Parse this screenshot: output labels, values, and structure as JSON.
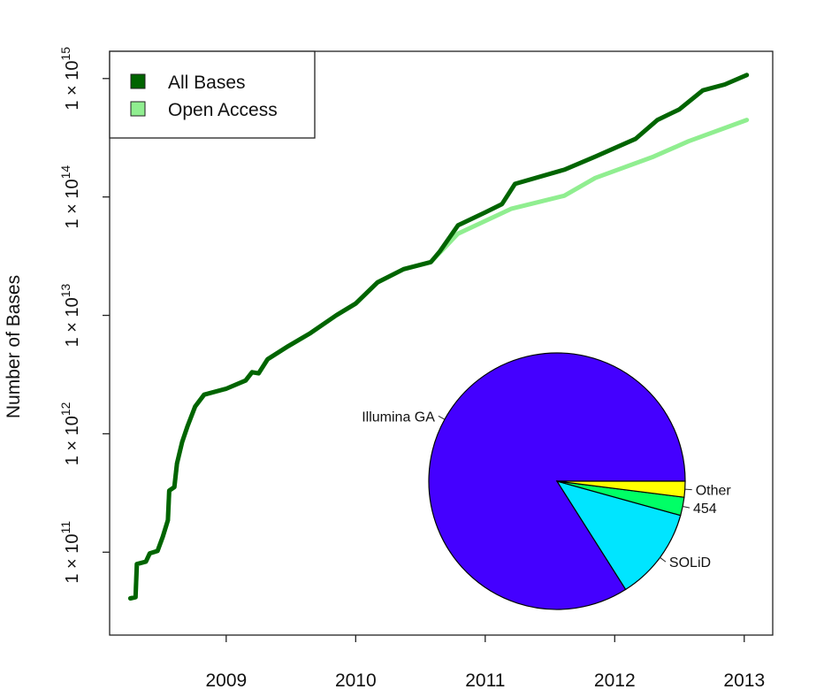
{
  "chart_data": {
    "type": "line",
    "title": "",
    "xlabel": "",
    "ylabel": "Number of Bases",
    "yscale": "log10",
    "xlim": [
      2008.1,
      2013.22
    ],
    "ylim_log10": [
      10.3,
      15.23
    ],
    "x_ticks": [
      2009,
      2010,
      2011,
      2012,
      2013
    ],
    "y_ticks": [
      {
        "exp": 11,
        "label": "1 × 10",
        "sup": "11"
      },
      {
        "exp": 12,
        "label": "1 × 10",
        "sup": "12"
      },
      {
        "exp": 13,
        "label": "1 × 10",
        "sup": "13"
      },
      {
        "exp": 14,
        "label": "1 × 10",
        "sup": "14"
      },
      {
        "exp": 15,
        "label": "1 × 10",
        "sup": "15"
      }
    ],
    "legend": {
      "position": "top-left"
    },
    "series": [
      {
        "name": "All Bases",
        "color": "#006400",
        "x": [
          2008.26,
          2008.3,
          2008.31,
          2008.38,
          2008.41,
          2008.47,
          2008.51,
          2008.55,
          2008.56,
          2008.6,
          2008.62,
          2008.66,
          2008.7,
          2008.76,
          2008.83,
          2009.0,
          2009.15,
          2009.2,
          2009.25,
          2009.32,
          2009.48,
          2009.65,
          2009.85,
          2010.0,
          2010.17,
          2010.37,
          2010.58,
          2010.65,
          2010.79,
          2011.0,
          2011.13,
          2011.23,
          2011.61,
          2011.85,
          2012.16,
          2012.33,
          2012.5,
          2012.68,
          2012.85,
          2013.02
        ],
        "log10_values": [
          10.61,
          10.62,
          10.9,
          10.92,
          10.99,
          11.01,
          11.13,
          11.27,
          11.52,
          11.55,
          11.75,
          11.93,
          12.06,
          12.23,
          12.33,
          12.38,
          12.45,
          12.52,
          12.51,
          12.63,
          12.74,
          12.85,
          13.0,
          13.1,
          13.28,
          13.39,
          13.45,
          13.54,
          13.76,
          13.87,
          13.94,
          14.11,
          14.23,
          14.34,
          14.49,
          14.65,
          14.74,
          14.9,
          14.95,
          15.03
        ]
      },
      {
        "name": "Open Access",
        "color": "#90EE90",
        "x": [
          2008.26,
          2008.3,
          2008.31,
          2008.38,
          2008.41,
          2008.47,
          2008.51,
          2008.55,
          2008.56,
          2008.6,
          2008.62,
          2008.66,
          2008.7,
          2008.76,
          2008.83,
          2009.0,
          2009.15,
          2009.2,
          2009.25,
          2009.32,
          2009.48,
          2009.65,
          2009.85,
          2010.0,
          2010.17,
          2010.37,
          2010.58,
          2010.79,
          2011.2,
          2011.61,
          2011.85,
          2012.3,
          2012.57,
          2013.02
        ],
        "log10_values": [
          10.61,
          10.62,
          10.9,
          10.92,
          10.99,
          11.01,
          11.13,
          11.27,
          11.52,
          11.55,
          11.75,
          11.93,
          12.06,
          12.23,
          12.33,
          12.38,
          12.45,
          12.52,
          12.51,
          12.63,
          12.74,
          12.85,
          13.0,
          13.1,
          13.28,
          13.39,
          13.45,
          13.69,
          13.9,
          14.01,
          14.16,
          14.34,
          14.47,
          14.65
        ]
      }
    ],
    "inset_pie": {
      "type": "pie",
      "slices": [
        {
          "label": "Illumina GA",
          "value": 84.0,
          "color": "#4400FF"
        },
        {
          "label": "SOLiD",
          "value": 11.7,
          "color": "#00E5FF"
        },
        {
          "label": "454",
          "value": 2.3,
          "color": "#00FF66"
        },
        {
          "label": "Other",
          "value": 2.0,
          "color": "#FFFF00"
        }
      ]
    }
  }
}
